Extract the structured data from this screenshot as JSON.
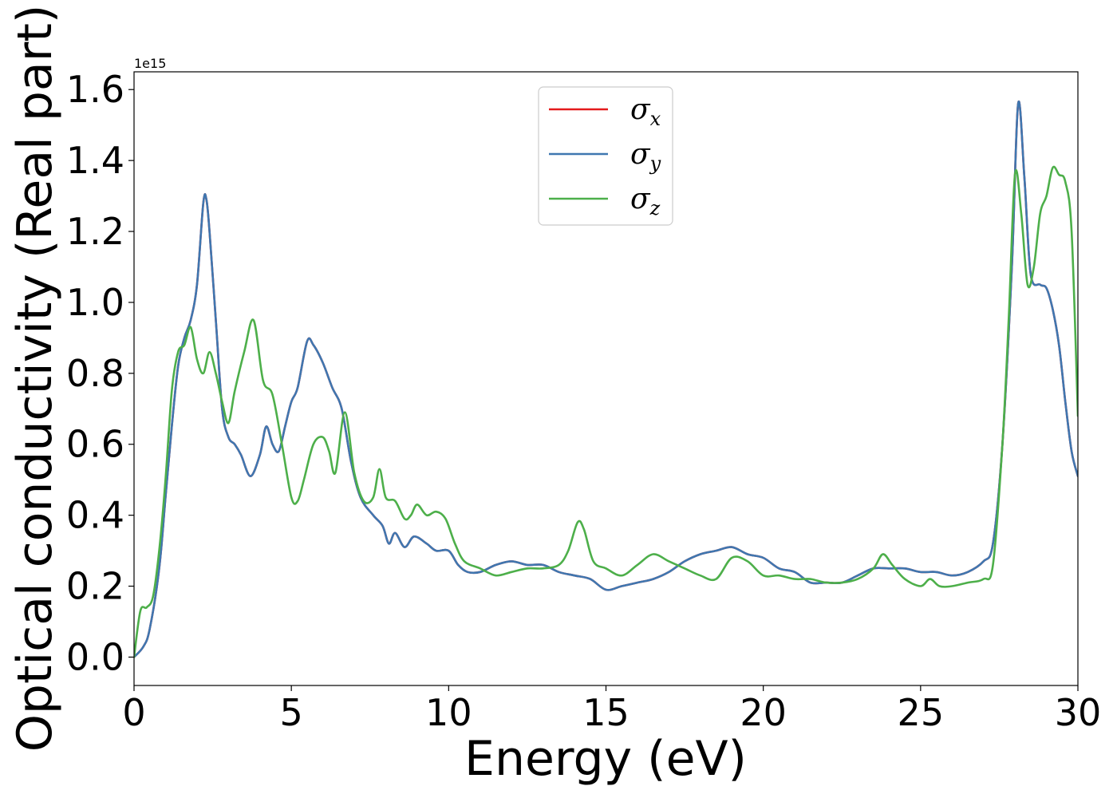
{
  "chart_data": {
    "type": "line",
    "title": "",
    "xlabel": "Energy (eV)",
    "ylabel": "Optical conductivity (Real part)",
    "y_offset_label": "1e15",
    "xlim": [
      0,
      30
    ],
    "ylim": [
      -0.08,
      1.65
    ],
    "xticks": [
      0,
      5,
      10,
      15,
      20,
      25,
      30
    ],
    "xtick_labels": [
      "0",
      "5",
      "10",
      "15",
      "20",
      "25",
      "30"
    ],
    "yticks": [
      0.0,
      0.2,
      0.4,
      0.6,
      0.8,
      1.0,
      1.2,
      1.4,
      1.6
    ],
    "ytick_labels": [
      "0.0",
      "0.2",
      "0.4",
      "0.6",
      "0.8",
      "1.0",
      "1.2",
      "1.4",
      "1.6"
    ],
    "grid": false,
    "legend_position": "top-center",
    "series": [
      {
        "name": "σ",
        "subscript": "x",
        "color": "#e41a1c",
        "x": [
          0,
          0.3,
          0.5,
          0.8,
          1.0,
          1.2,
          1.4,
          1.6,
          1.8,
          2.0,
          2.2,
          2.3,
          2.4,
          2.6,
          2.8,
          3.0,
          3.2,
          3.4,
          3.7,
          4.0,
          4.2,
          4.4,
          4.6,
          4.8,
          5.0,
          5.2,
          5.5,
          5.7,
          6.0,
          6.3,
          6.6,
          6.9,
          7.2,
          7.6,
          7.9,
          8.1,
          8.3,
          8.6,
          8.9,
          9.3,
          9.6,
          10.0,
          10.3,
          10.6,
          11.0,
          11.5,
          12.0,
          12.5,
          13.0,
          13.5,
          14.0,
          14.5,
          15.0,
          15.5,
          16.0,
          16.5,
          17.0,
          17.5,
          18.0,
          18.5,
          19.0,
          19.5,
          20.0,
          20.5,
          21.0,
          21.5,
          22.0,
          22.5,
          23.0,
          23.5,
          24.0,
          24.5,
          25.0,
          25.5,
          26.0,
          26.5,
          27.0,
          27.3,
          27.6,
          27.9,
          28.1,
          28.3,
          28.5,
          28.8,
          29.0,
          29.2,
          29.4,
          29.6,
          29.8,
          30.0
        ],
        "values": [
          0.0,
          0.03,
          0.08,
          0.25,
          0.45,
          0.65,
          0.82,
          0.9,
          0.95,
          1.05,
          1.28,
          1.29,
          1.2,
          0.95,
          0.7,
          0.62,
          0.6,
          0.57,
          0.51,
          0.57,
          0.65,
          0.6,
          0.58,
          0.65,
          0.72,
          0.76,
          0.89,
          0.88,
          0.83,
          0.76,
          0.7,
          0.55,
          0.45,
          0.4,
          0.37,
          0.32,
          0.35,
          0.31,
          0.34,
          0.32,
          0.3,
          0.3,
          0.26,
          0.24,
          0.24,
          0.26,
          0.27,
          0.26,
          0.26,
          0.24,
          0.23,
          0.22,
          0.19,
          0.2,
          0.21,
          0.22,
          0.24,
          0.27,
          0.29,
          0.3,
          0.31,
          0.29,
          0.28,
          0.25,
          0.24,
          0.21,
          0.21,
          0.21,
          0.23,
          0.25,
          0.25,
          0.25,
          0.24,
          0.24,
          0.23,
          0.24,
          0.27,
          0.32,
          0.6,
          1.1,
          1.56,
          1.35,
          1.08,
          1.05,
          1.04,
          0.98,
          0.88,
          0.72,
          0.58,
          0.51
        ]
      },
      {
        "name": "σ",
        "subscript": "y",
        "color": "#3f77b0",
        "x": [
          0,
          0.3,
          0.5,
          0.8,
          1.0,
          1.2,
          1.4,
          1.6,
          1.8,
          2.0,
          2.2,
          2.3,
          2.4,
          2.6,
          2.8,
          3.0,
          3.2,
          3.4,
          3.7,
          4.0,
          4.2,
          4.4,
          4.6,
          4.8,
          5.0,
          5.2,
          5.5,
          5.7,
          6.0,
          6.3,
          6.6,
          6.9,
          7.2,
          7.6,
          7.9,
          8.1,
          8.3,
          8.6,
          8.9,
          9.3,
          9.6,
          10.0,
          10.3,
          10.6,
          11.0,
          11.5,
          12.0,
          12.5,
          13.0,
          13.5,
          14.0,
          14.5,
          15.0,
          15.5,
          16.0,
          16.5,
          17.0,
          17.5,
          18.0,
          18.5,
          19.0,
          19.5,
          20.0,
          20.5,
          21.0,
          21.5,
          22.0,
          22.5,
          23.0,
          23.5,
          24.0,
          24.5,
          25.0,
          25.5,
          26.0,
          26.5,
          27.0,
          27.3,
          27.6,
          27.9,
          28.1,
          28.3,
          28.5,
          28.8,
          29.0,
          29.2,
          29.4,
          29.6,
          29.8,
          30.0
        ],
        "values": [
          0.0,
          0.03,
          0.08,
          0.25,
          0.45,
          0.65,
          0.82,
          0.9,
          0.95,
          1.05,
          1.28,
          1.29,
          1.2,
          0.95,
          0.7,
          0.62,
          0.6,
          0.57,
          0.51,
          0.57,
          0.65,
          0.6,
          0.58,
          0.65,
          0.72,
          0.76,
          0.89,
          0.88,
          0.83,
          0.76,
          0.7,
          0.55,
          0.45,
          0.4,
          0.37,
          0.32,
          0.35,
          0.31,
          0.34,
          0.32,
          0.3,
          0.3,
          0.26,
          0.24,
          0.24,
          0.26,
          0.27,
          0.26,
          0.26,
          0.24,
          0.23,
          0.22,
          0.19,
          0.2,
          0.21,
          0.22,
          0.24,
          0.27,
          0.29,
          0.3,
          0.31,
          0.29,
          0.28,
          0.25,
          0.24,
          0.21,
          0.21,
          0.21,
          0.23,
          0.25,
          0.25,
          0.25,
          0.24,
          0.24,
          0.23,
          0.24,
          0.27,
          0.32,
          0.6,
          1.1,
          1.56,
          1.35,
          1.08,
          1.05,
          1.04,
          0.98,
          0.88,
          0.72,
          0.58,
          0.51
        ]
      },
      {
        "name": "σ",
        "subscript": "z",
        "color": "#4daf4a",
        "x": [
          0,
          0.2,
          0.4,
          0.6,
          0.8,
          1.0,
          1.2,
          1.4,
          1.6,
          1.8,
          2.0,
          2.2,
          2.4,
          2.6,
          2.8,
          3.0,
          3.2,
          3.5,
          3.8,
          4.1,
          4.4,
          4.7,
          5.0,
          5.2,
          5.4,
          5.7,
          6.0,
          6.2,
          6.4,
          6.7,
          7.0,
          7.3,
          7.6,
          7.8,
          8.0,
          8.3,
          8.6,
          8.8,
          9.0,
          9.3,
          9.6,
          9.9,
          10.2,
          10.5,
          11.0,
          11.5,
          12.0,
          12.5,
          13.0,
          13.5,
          13.8,
          14.1,
          14.3,
          14.6,
          15.0,
          15.5,
          16.0,
          16.5,
          17.0,
          17.5,
          18.0,
          18.5,
          19.0,
          19.5,
          20.0,
          20.5,
          21.0,
          21.5,
          22.0,
          22.5,
          23.0,
          23.5,
          23.8,
          24.1,
          24.5,
          25.0,
          25.3,
          25.6,
          26.0,
          26.5,
          27.0,
          27.3,
          27.6,
          27.8,
          28.0,
          28.2,
          28.4,
          28.6,
          28.8,
          29.0,
          29.2,
          29.4,
          29.6,
          29.8,
          30.0
        ],
        "values": [
          0.0,
          0.13,
          0.14,
          0.17,
          0.3,
          0.5,
          0.75,
          0.86,
          0.88,
          0.93,
          0.84,
          0.8,
          0.86,
          0.8,
          0.72,
          0.66,
          0.75,
          0.86,
          0.95,
          0.78,
          0.74,
          0.6,
          0.45,
          0.44,
          0.5,
          0.6,
          0.62,
          0.58,
          0.52,
          0.69,
          0.52,
          0.44,
          0.45,
          0.53,
          0.45,
          0.44,
          0.39,
          0.4,
          0.43,
          0.4,
          0.41,
          0.39,
          0.32,
          0.27,
          0.25,
          0.23,
          0.24,
          0.25,
          0.25,
          0.26,
          0.3,
          0.38,
          0.36,
          0.27,
          0.25,
          0.23,
          0.26,
          0.29,
          0.27,
          0.25,
          0.23,
          0.22,
          0.28,
          0.27,
          0.23,
          0.23,
          0.22,
          0.22,
          0.21,
          0.21,
          0.22,
          0.25,
          0.29,
          0.26,
          0.22,
          0.2,
          0.22,
          0.2,
          0.2,
          0.21,
          0.22,
          0.26,
          0.6,
          0.95,
          1.36,
          1.25,
          1.05,
          1.1,
          1.25,
          1.3,
          1.38,
          1.36,
          1.34,
          1.2,
          0.68
        ]
      }
    ]
  }
}
